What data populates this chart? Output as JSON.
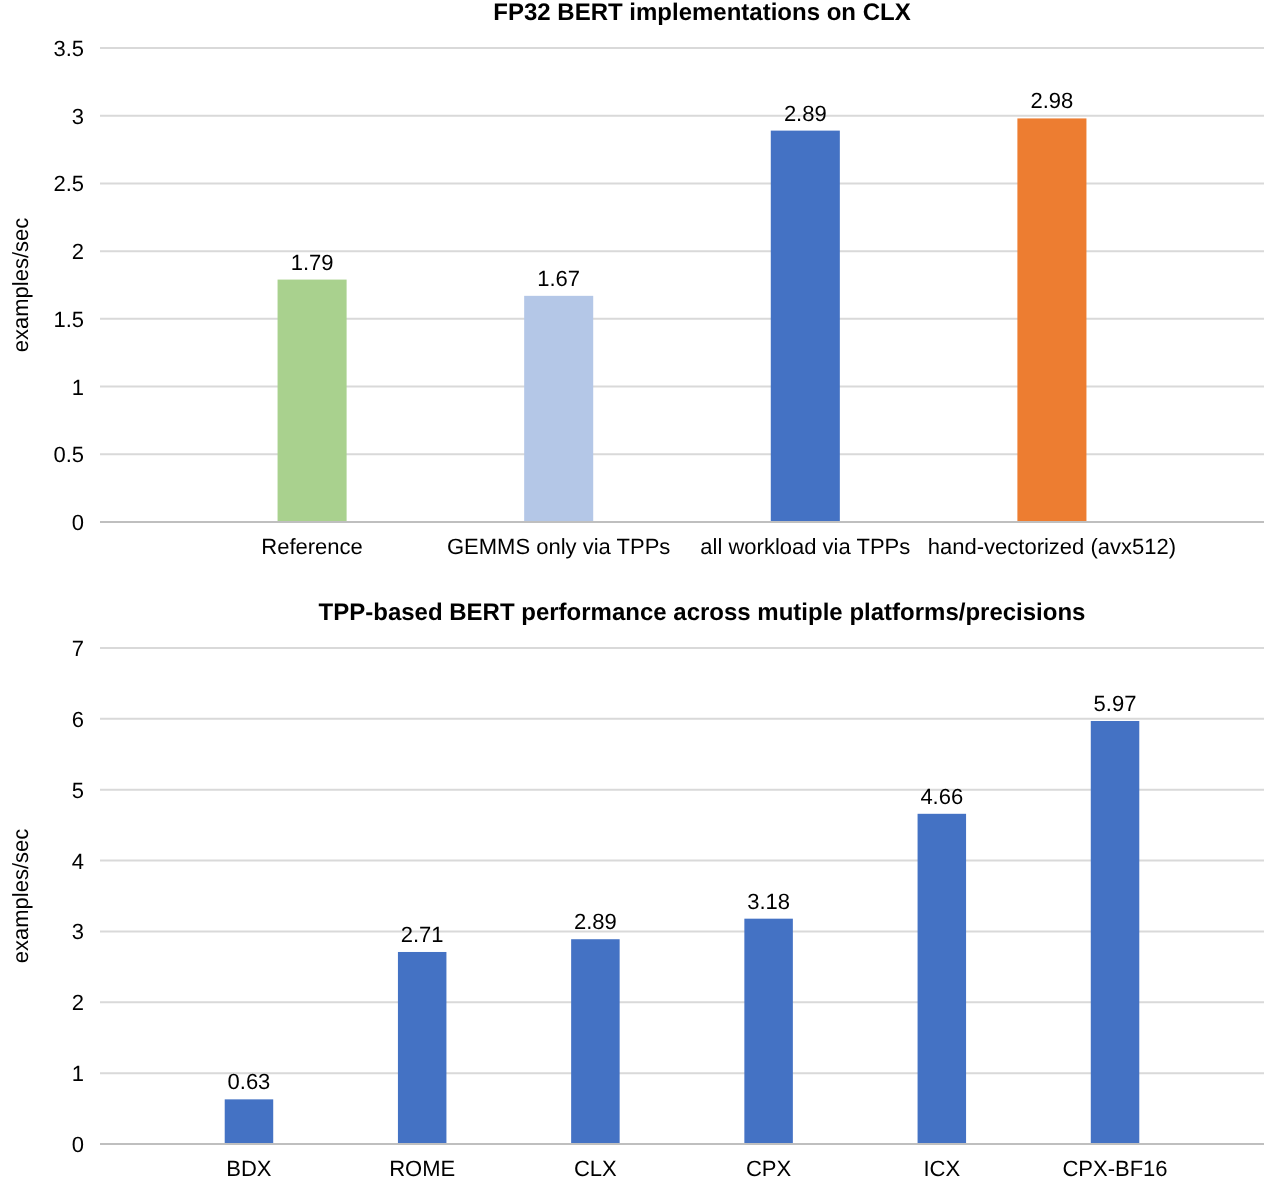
{
  "chart_data": [
    {
      "type": "bar",
      "title": "FP32 BERT implementations on CLX",
      "ylabel": "examples/sec",
      "categories": [
        "Reference",
        "GEMMS only via TPPs",
        "all workload via TPPs",
        "hand-vectorized (avx512)"
      ],
      "values": [
        1.79,
        1.67,
        2.89,
        2.98
      ],
      "colors": [
        "#a9d18e",
        "#b4c7e7",
        "#4472c4",
        "#ed7d31"
      ],
      "ylim": [
        0,
        3.5
      ],
      "yticks": [
        0,
        0.5,
        1,
        1.5,
        2,
        2.5,
        3,
        3.5
      ],
      "grid": "y",
      "data_labels": true
    },
    {
      "type": "bar",
      "title": "TPP-based BERT performance across mutiple platforms/precisions",
      "ylabel": "examples/sec",
      "categories": [
        "BDX",
        "ROME",
        "CLX",
        "CPX",
        "ICX",
        "CPX-BF16"
      ],
      "values": [
        0.63,
        2.71,
        2.89,
        3.18,
        4.66,
        5.97
      ],
      "color": "#4472c4",
      "ylim": [
        0,
        7
      ],
      "yticks": [
        0,
        1,
        2,
        3,
        4,
        5,
        6,
        7
      ],
      "grid": "y",
      "data_labels": true
    }
  ]
}
